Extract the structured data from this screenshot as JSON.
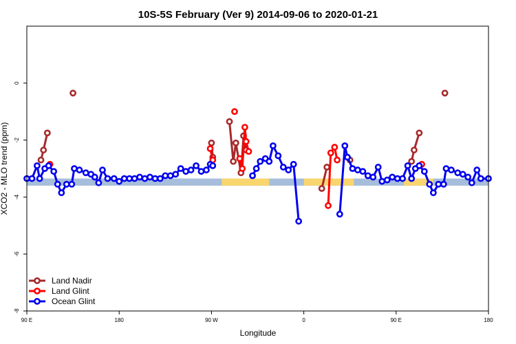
{
  "chart_data": {
    "type": "line",
    "title": "10S-5S February (Ver 9)   2014-09-06 to 2020-01-21",
    "xlabel": "Longitude",
    "ylabel": "XCO2 - MLO trend (ppm)",
    "xlim": [
      -90,
      270
    ],
    "ylim": [
      -8,
      2
    ],
    "x_ticks": [
      {
        "value": -90,
        "label": "90 E"
      },
      {
        "value": -18,
        "label": "180"
      },
      {
        "value": 54,
        "label": "90 W"
      },
      {
        "value": 126,
        "label": "0"
      },
      {
        "value": 198,
        "label": "90 E"
      },
      {
        "value": 270,
        "label": "180"
      }
    ],
    "y_ticks": [
      {
        "value": 0,
        "label": "0"
      },
      {
        "value": -2,
        "label": "-2"
      },
      {
        "value": -4,
        "label": "-4"
      },
      {
        "value": -6,
        "label": "-6"
      },
      {
        "value": -8,
        "label": "-8"
      }
    ],
    "band": {
      "y_min": -3.6,
      "y_max": -3.35,
      "color": "#a6bddb"
    },
    "land_segments": [
      {
        "x_start": 62,
        "x_end": 99,
        "color": "#f9d56e"
      },
      {
        "x_start": 126,
        "x_end": 165,
        "color": "#f9d56e"
      },
      {
        "x_start": 204,
        "x_end": 227,
        "color": "#f9d56e"
      }
    ],
    "legend": {
      "position": "bottom-left"
    },
    "series": [
      {
        "name": "Land Nadir",
        "color": "#a52a2a",
        "segments": [
          [
            [
              -79,
              -2.7
            ],
            [
              -77,
              -2.35
            ],
            [
              -74,
              -1.75
            ]
          ],
          [
            [
              -54,
              -0.35
            ]
          ],
          [
            [
              54,
              -2.1
            ],
            [
              55,
              -2.6
            ]
          ],
          [
            [
              68,
              -1.35
            ],
            [
              71,
              -2.75
            ],
            [
              73,
              -2.1
            ],
            [
              77,
              -3.15
            ],
            [
              79,
              -1.85
            ],
            [
              81,
              -2.35
            ]
          ],
          [
            [
              140,
              -3.7
            ],
            [
              144,
              -2.95
            ]
          ],
          [
            [
              162,
              -2.7
            ]
          ],
          [
            [
              210,
              -2.75
            ],
            [
              212,
              -2.35
            ],
            [
              216,
              -1.75
            ]
          ],
          [
            [
              236,
              -0.35
            ]
          ]
        ]
      },
      {
        "name": "Land Glint",
        "color": "#ff0000",
        "segments": [
          [
            [
              -72,
              -2.85
            ]
          ],
          [
            [
              53,
              -2.3
            ],
            [
              55,
              -2.7
            ]
          ],
          [
            [
              72,
              -1.0
            ]
          ],
          [
            [
              76,
              -2.65
            ],
            [
              78,
              -3.0
            ],
            [
              80,
              -1.55
            ],
            [
              81,
              -2.05
            ],
            [
              83,
              -2.4
            ]
          ],
          [
            [
              145,
              -4.3
            ],
            [
              147,
              -2.45
            ],
            [
              150,
              -2.25
            ],
            [
              152,
              -2.7
            ]
          ],
          [
            [
              218,
              -2.85
            ]
          ]
        ]
      },
      {
        "name": "Ocean Glint",
        "color": "#0000ee",
        "segments": [
          [
            [
              -90,
              -3.35
            ],
            [
              -86,
              -3.35
            ],
            [
              -82,
              -2.9
            ],
            [
              -80,
              -3.35
            ],
            [
              -76,
              -3.0
            ],
            [
              -73,
              -2.9
            ],
            [
              -69,
              -3.1
            ],
            [
              -66,
              -3.55
            ],
            [
              -63,
              -3.85
            ],
            [
              -59,
              -3.55
            ],
            [
              -55,
              -3.55
            ],
            [
              -53,
              -3.0
            ],
            [
              -49,
              -3.05
            ],
            [
              -44,
              -3.15
            ],
            [
              -40,
              -3.2
            ],
            [
              -37,
              -3.3
            ],
            [
              -34,
              -3.5
            ],
            [
              -31,
              -3.05
            ],
            [
              -27,
              -3.35
            ],
            [
              -22,
              -3.35
            ],
            [
              -18,
              -3.45
            ],
            [
              -14,
              -3.35
            ],
            [
              -10,
              -3.35
            ],
            [
              -6,
              -3.35
            ],
            [
              -2,
              -3.3
            ],
            [
              2,
              -3.35
            ],
            [
              6,
              -3.3
            ],
            [
              10,
              -3.35
            ],
            [
              14,
              -3.35
            ],
            [
              18,
              -3.25
            ],
            [
              22,
              -3.25
            ],
            [
              26,
              -3.2
            ],
            [
              30,
              -3.0
            ],
            [
              34,
              -3.1
            ],
            [
              38,
              -3.05
            ],
            [
              42,
              -2.9
            ],
            [
              46,
              -3.1
            ],
            [
              50,
              -3.05
            ],
            [
              53,
              -2.85
            ],
            [
              55,
              -2.9
            ]
          ],
          [
            [
              86,
              -3.25
            ],
            [
              89,
              -3.0
            ],
            [
              92,
              -2.75
            ],
            [
              96,
              -2.65
            ],
            [
              99,
              -2.75
            ],
            [
              102,
              -2.2
            ],
            [
              106,
              -2.55
            ],
            [
              110,
              -2.95
            ],
            [
              114,
              -3.05
            ],
            [
              118,
              -2.85
            ],
            [
              122,
              -4.85
            ]
          ],
          [
            [
              154,
              -4.6
            ],
            [
              158,
              -2.2
            ],
            [
              160,
              -2.6
            ],
            [
              164,
              -3.0
            ],
            [
              168,
              -3.05
            ],
            [
              172,
              -3.1
            ],
            [
              176,
              -3.25
            ],
            [
              180,
              -3.3
            ],
            [
              184,
              -2.95
            ],
            [
              187,
              -3.45
            ],
            [
              191,
              -3.4
            ],
            [
              195,
              -3.3
            ],
            [
              199,
              -3.35
            ],
            [
              203,
              -3.35
            ],
            [
              207,
              -2.9
            ],
            [
              210,
              -3.35
            ],
            [
              213,
              -3.0
            ],
            [
              216,
              -2.9
            ],
            [
              220,
              -3.1
            ],
            [
              224,
              -3.55
            ],
            [
              227,
              -3.85
            ],
            [
              231,
              -3.55
            ],
            [
              235,
              -3.55
            ],
            [
              237,
              -3.0
            ],
            [
              241,
              -3.05
            ],
            [
              246,
              -3.15
            ],
            [
              250,
              -3.2
            ],
            [
              254,
              -3.3
            ],
            [
              257,
              -3.5
            ],
            [
              261,
              -3.05
            ],
            [
              264,
              -3.35
            ],
            [
              270,
              -3.35
            ]
          ]
        ]
      }
    ]
  }
}
